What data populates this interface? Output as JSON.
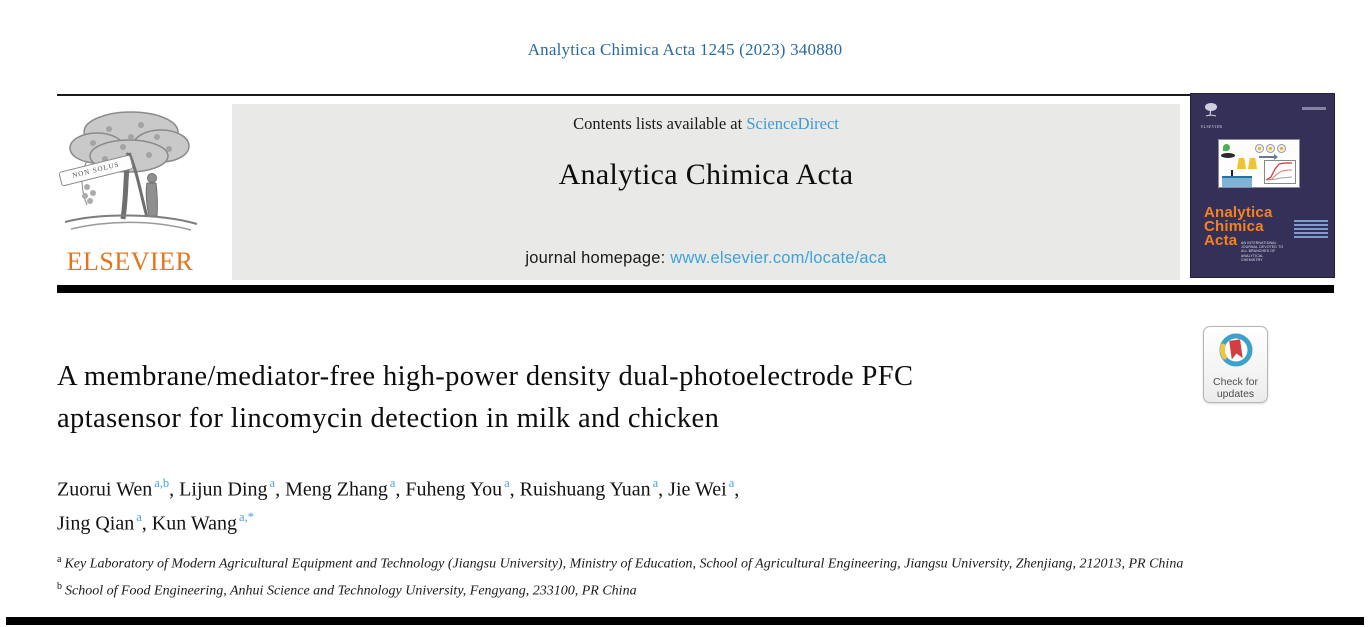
{
  "masthead": {
    "citation": "Analytica Chimica Acta 1245 (2023) 340880",
    "elsevier_wordmark": "ELSEVIER",
    "elsevier_banner": "NON SOLUS",
    "contents_prefix": "Contents lists available at ",
    "sciencedirect_link": "ScienceDirect",
    "journal_title": "Analytica Chimica Acta",
    "homepage_prefix": "journal homepage: ",
    "homepage_link": "www.elsevier.com/locate/aca"
  },
  "cover": {
    "title_lines": [
      "Analytica",
      "Chimica",
      "Acta"
    ],
    "subtitle": "AN INTERNATIONAL JOURNAL DEVOTED TO ALL BRANCHES OF ANALYTICAL CHEMISTRY",
    "publisher_small": "ELSEVIER"
  },
  "badge": {
    "line1": "Check for",
    "line2": "updates"
  },
  "article": {
    "title_line1": "A membrane/mediator-free high-power density dual-photoelectrode PFC",
    "title_line2": "aptasensor for lincomycin detection in milk and chicken",
    "author_lines": [
      [
        {
          "name": "Zuorui Wen",
          "sup": "a,b",
          "sep": ", "
        },
        {
          "name": "Lijun Ding",
          "sup": "a",
          "sep": ", "
        },
        {
          "name": "Meng Zhang",
          "sup": "a",
          "sep": ", "
        },
        {
          "name": "Fuheng You",
          "sup": "a",
          "sep": ", "
        },
        {
          "name": "Ruishuang Yuan",
          "sup": "a",
          "sep": ", "
        },
        {
          "name": "Jie Wei",
          "sup": "a",
          "sep": ","
        }
      ],
      [
        {
          "name": "Jing Qian",
          "sup": "a",
          "sep": ", "
        },
        {
          "name": "Kun Wang",
          "sup": "a,*",
          "sep": ""
        }
      ]
    ],
    "affiliations": [
      {
        "sup": "a",
        "text": "Key Laboratory of Modern Agricultural Equipment and Technology (Jiangsu University), Ministry of Education, School of Agricultural Engineering, Jiangsu University, Zhenjiang, 212013, PR China"
      },
      {
        "sup": "b",
        "text": "School of Food Engineering, Anhui Science and Technology University, Fengyang, 233100, PR China"
      }
    ]
  },
  "colors": {
    "citation_blue": "#2b6a9e",
    "sciencedirect_blue": "#3e9bd5",
    "homepage_link_blue": "#3ba3dc",
    "superscript_blue": "#4aa3dd",
    "elsevier_orange": "#e8731a",
    "cover_navy": "#343057",
    "cover_title_orange": "#f58220",
    "badge_red": "#d23f42",
    "badge_teal": "#3ba2c9",
    "badge_yellow": "#f0c53f",
    "header_gray": "#e9e9e7"
  }
}
